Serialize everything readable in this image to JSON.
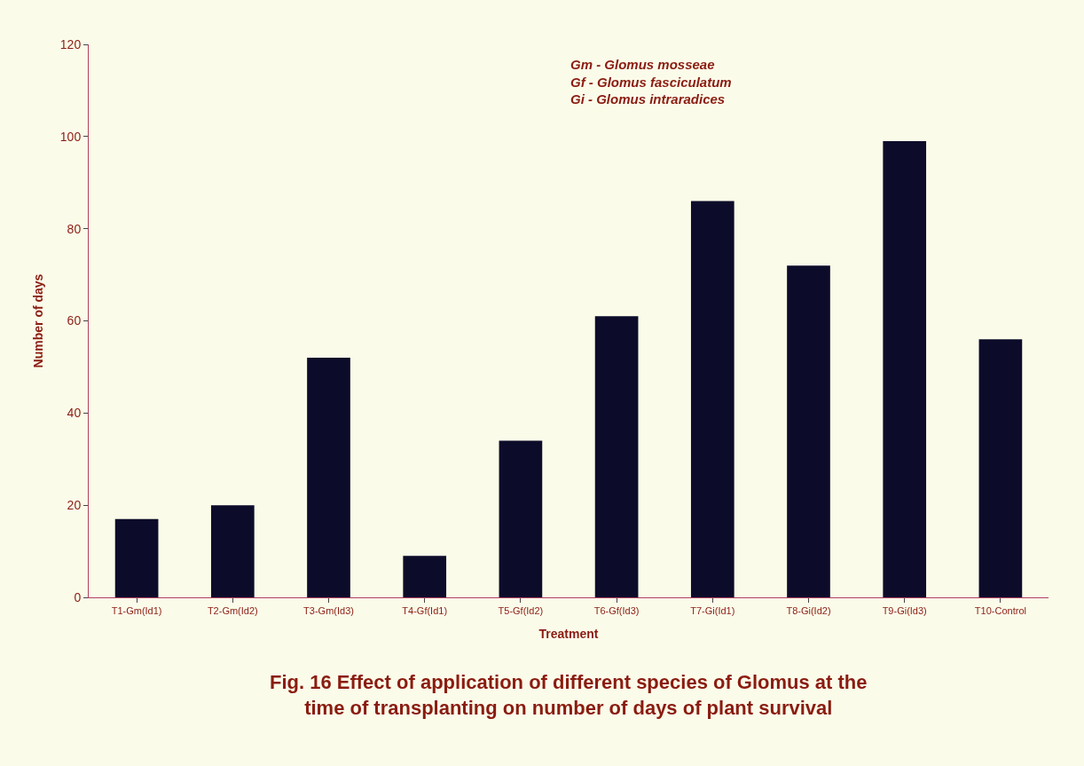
{
  "chart_data": {
    "type": "bar",
    "title": "Fig. 16 Effect of application of different species of Glomus at the time of transplanting on number of days of plant survival",
    "xlabel": "Treatment",
    "ylabel": "Number of days",
    "categories": [
      "T1-Gm(Id1)",
      "T2-Gm(Id2)",
      "T3-Gm(Id3)",
      "T4-Gf(Id1)",
      "T5-Gf(Id2)",
      "T6-Gf(Id3)",
      "T7-Gi(Id1)",
      "T8-Gi(Id2)",
      "T9-Gi(Id3)",
      "T10-Control"
    ],
    "values": [
      17,
      20,
      52,
      9,
      34,
      61,
      86,
      72,
      99,
      56
    ],
    "color": "#0c0c2a",
    "ylim": [
      0,
      120
    ],
    "yticks": [
      0,
      20,
      40,
      60,
      80,
      100,
      120
    ],
    "grid": false,
    "legend": false,
    "annotations": [
      "Gm - Glomus mosseae",
      "Gf - Glomus fasciculatum",
      "Gi - Glomus intraradices"
    ]
  }
}
